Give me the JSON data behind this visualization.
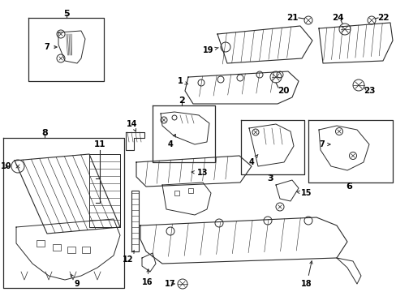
{
  "bg_color": "#ffffff",
  "line_color": "#2a2a2a",
  "text_color": "#000000",
  "fig_width": 4.89,
  "fig_height": 3.6,
  "dpi": 100
}
